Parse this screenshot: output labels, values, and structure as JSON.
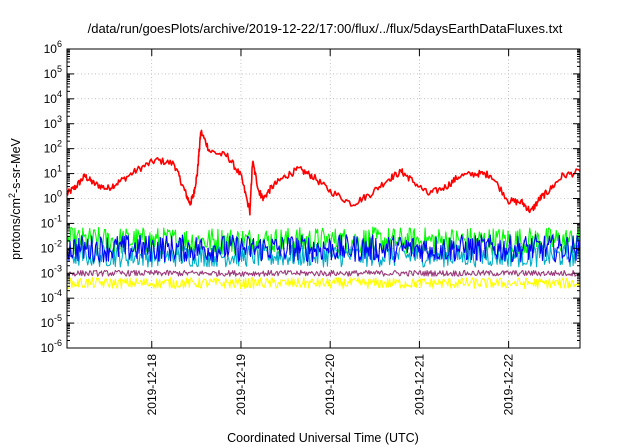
{
  "chart_data": {
    "type": "line",
    "title": "/data/run/goesPlots/archive/2019-12-22/17:00/flux/../flux/5daysEarthDataFluxes.txt",
    "xlabel": "Coordinated Universal Time (UTC)",
    "ylabel_base": "protons/cm",
    "ylabel_sup": "2",
    "ylabel_rest": "-s-sr-MeV",
    "yscale": "log",
    "ylim_exp": [
      -6,
      6
    ],
    "ytick_exponents": [
      -6,
      -5,
      -4,
      -3,
      -2,
      -1,
      0,
      1,
      2,
      3,
      4,
      5,
      6
    ],
    "ytick_base": "10",
    "xlim_days": [
      0,
      5.75
    ],
    "xticks": [
      {
        "label": "2019-12-18",
        "day": 0.95
      },
      {
        "label": "2019-12-19",
        "day": 1.95
      },
      {
        "label": "2019-12-20",
        "day": 2.95
      },
      {
        "label": "2019-12-21",
        "day": 3.95
      },
      {
        "label": "2019-12-22",
        "day": 4.95
      }
    ],
    "grid": true,
    "series": [
      {
        "color": "#ff0000",
        "kind": "line",
        "x": [
          0,
          0.1,
          0.2,
          0.3,
          0.45,
          0.6,
          0.8,
          1.0,
          1.2,
          1.3,
          1.38,
          1.42,
          1.46,
          1.5,
          1.6,
          1.8,
          1.95,
          2.05,
          2.08,
          2.15,
          2.2,
          2.3,
          2.45,
          2.6,
          2.75,
          2.95,
          3.2,
          3.4,
          3.6,
          3.75,
          3.85,
          4.05,
          4.25,
          4.4,
          4.6,
          4.75,
          4.95,
          5.1,
          5.2,
          5.3,
          5.4,
          5.55,
          5.75
        ],
        "y": [
          1.5,
          3,
          8,
          4,
          2.5,
          5,
          15,
          35,
          25,
          3,
          0.6,
          1.5,
          10,
          500,
          80,
          50,
          8,
          0.3,
          30,
          2,
          1,
          3,
          8,
          15,
          8,
          2,
          0.6,
          1.5,
          6,
          12,
          6,
          1.5,
          3,
          8,
          10,
          9,
          0.8,
          0.7,
          0.3,
          1,
          2,
          8,
          12
        ]
      },
      {
        "color": "#00ff00",
        "kind": "noisy",
        "x": [
          0,
          0.25,
          0.5,
          0.75,
          1.0,
          1.25,
          1.5,
          1.75,
          2.0,
          2.25,
          2.5,
          2.75,
          3.0,
          3.25,
          3.5,
          3.75,
          4.0,
          4.25,
          4.5,
          4.75,
          5.0,
          5.25,
          5.5,
          5.75
        ],
        "y": [
          0.02,
          0.02,
          0.02,
          0.02,
          0.02,
          0.02,
          0.02,
          0.02,
          0.02,
          0.02,
          0.02,
          0.02,
          0.02,
          0.02,
          0.02,
          0.02,
          0.02,
          0.02,
          0.02,
          0.02,
          0.02,
          0.02,
          0.02,
          0.02
        ]
      },
      {
        "color": "#00b0c8",
        "kind": "noisy",
        "x": [
          0,
          0.25,
          0.5,
          0.75,
          1.0,
          1.25,
          1.5,
          1.75,
          2.0,
          2.25,
          2.5,
          2.75,
          3.0,
          3.25,
          3.5,
          3.75,
          4.0,
          4.25,
          4.5,
          4.75,
          5.0,
          5.25,
          5.5,
          5.75
        ],
        "y": [
          0.005,
          0.005,
          0.005,
          0.005,
          0.005,
          0.005,
          0.005,
          0.005,
          0.005,
          0.005,
          0.005,
          0.005,
          0.005,
          0.005,
          0.005,
          0.005,
          0.005,
          0.005,
          0.005,
          0.005,
          0.005,
          0.005,
          0.005,
          0.005
        ]
      },
      {
        "color": "#0000ff",
        "kind": "noisy",
        "x": [
          0,
          0.25,
          0.5,
          0.75,
          1.0,
          1.25,
          1.5,
          1.75,
          2.0,
          2.25,
          2.5,
          2.75,
          3.0,
          3.25,
          3.5,
          3.75,
          4.0,
          4.25,
          4.5,
          4.75,
          5.0,
          5.25,
          5.5,
          5.75
        ],
        "y": [
          0.01,
          0.01,
          0.01,
          0.01,
          0.01,
          0.01,
          0.01,
          0.01,
          0.01,
          0.01,
          0.01,
          0.01,
          0.01,
          0.01,
          0.01,
          0.01,
          0.01,
          0.01,
          0.01,
          0.01,
          0.01,
          0.01,
          0.01,
          0.01
        ]
      },
      {
        "color": "#ffff00",
        "kind": "noisy",
        "x": [
          0,
          0.25,
          0.5,
          0.75,
          1.0,
          1.25,
          1.5,
          1.75,
          2.0,
          2.25,
          2.5,
          2.75,
          3.0,
          3.25,
          3.5,
          3.75,
          4.0,
          4.25,
          4.5,
          4.75,
          5.0,
          5.25,
          5.5,
          5.75
        ],
        "y": [
          0.0004,
          0.0004,
          0.0004,
          0.0004,
          0.0004,
          0.0004,
          0.0004,
          0.0004,
          0.0004,
          0.0004,
          0.0004,
          0.0004,
          0.0004,
          0.0004,
          0.0004,
          0.0004,
          0.0004,
          0.0004,
          0.0004,
          0.0004,
          0.0004,
          0.0004,
          0.0004,
          0.0004
        ]
      },
      {
        "color": "#9c3c7c",
        "kind": "noisy",
        "x": [
          0,
          0.25,
          0.5,
          0.75,
          1.0,
          1.25,
          1.5,
          1.75,
          2.0,
          2.25,
          2.5,
          2.75,
          3.0,
          3.25,
          3.5,
          3.75,
          4.0,
          4.25,
          4.5,
          4.75,
          5.0,
          5.25,
          5.5,
          5.75
        ],
        "y": [
          0.001,
          0.001,
          0.001,
          0.001,
          0.001,
          0.001,
          0.001,
          0.001,
          0.001,
          0.001,
          0.001,
          0.001,
          0.001,
          0.001,
          0.001,
          0.001,
          0.001,
          0.001,
          0.001,
          0.001,
          0.001,
          0.001,
          0.001,
          0.001
        ]
      }
    ]
  }
}
